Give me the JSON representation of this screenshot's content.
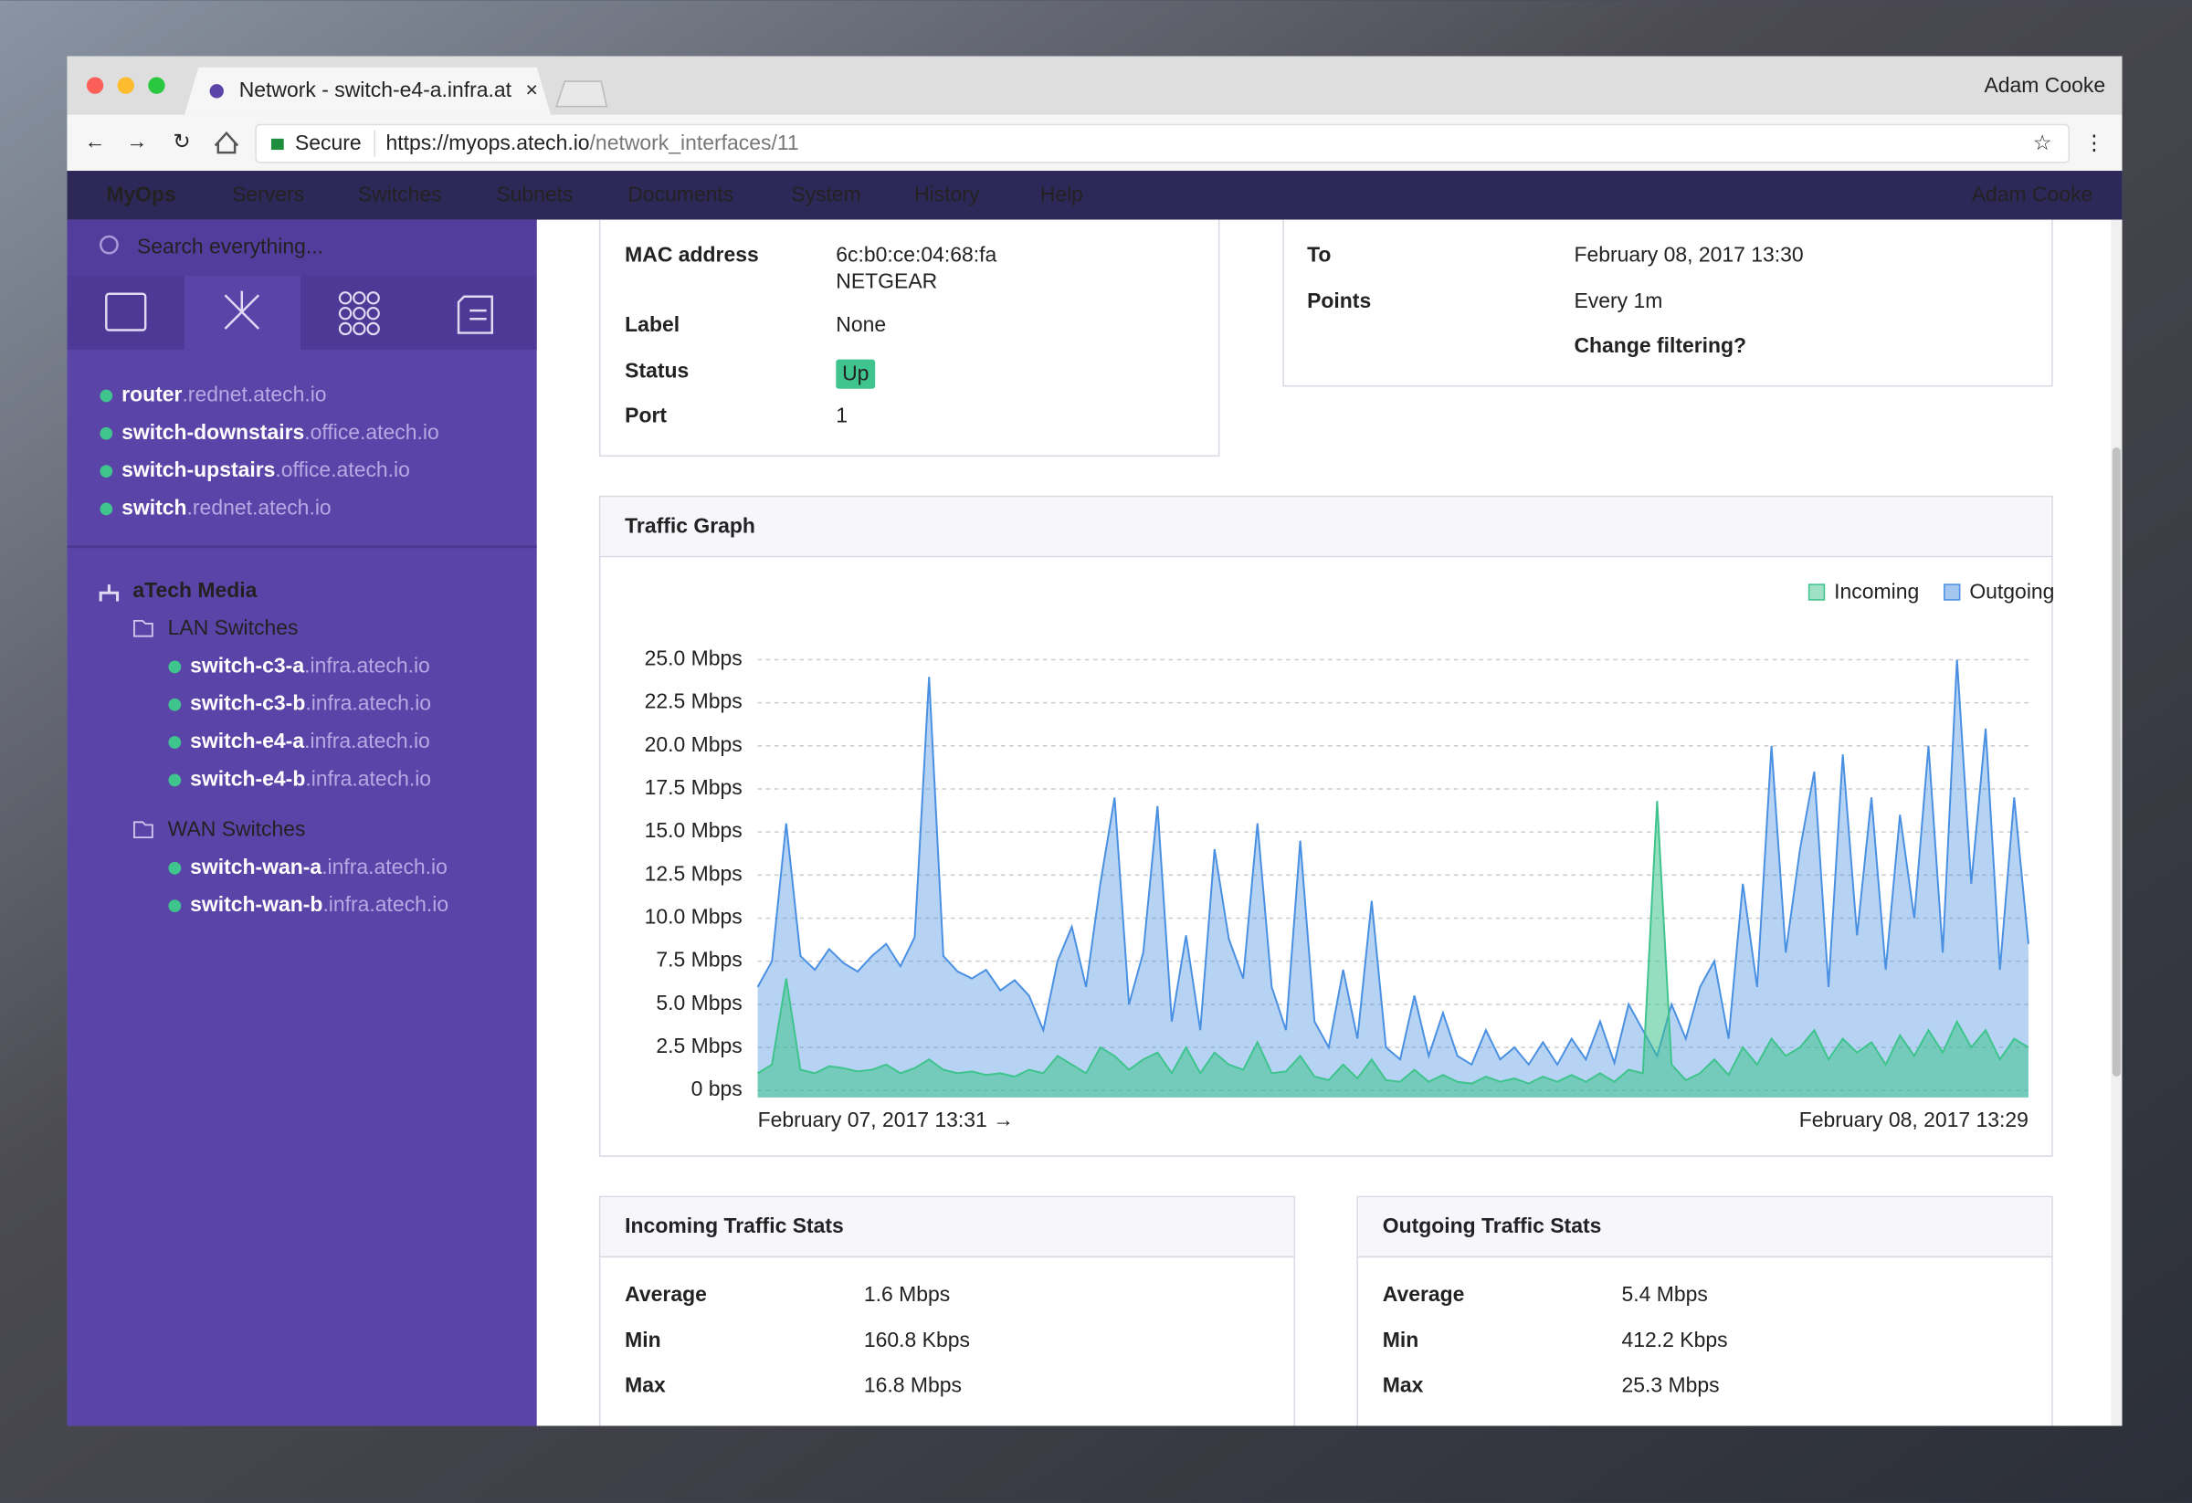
{
  "browser": {
    "tab_title": "Network - switch-e4-a.infra.at",
    "user": "Adam Cooke",
    "secure": "Secure",
    "url_host": "https://myops.atech.io",
    "url_path": "/network_interfaces/11"
  },
  "nav": {
    "brand": "MyOps",
    "items": [
      "Servers",
      "Switches",
      "Subnets",
      "Documents",
      "System",
      "History",
      "Help"
    ],
    "user": "Adam Cooke"
  },
  "sidebar": {
    "search_placeholder": "Search everything...",
    "devices": [
      {
        "name": "router",
        "domain": ".rednet.atech.io"
      },
      {
        "name": "switch-downstairs",
        "domain": ".office.atech.io"
      },
      {
        "name": "switch-upstairs",
        "domain": ".office.atech.io"
      },
      {
        "name": "switch",
        "domain": ".rednet.atech.io"
      }
    ],
    "group": "aTech Media",
    "folders": [
      {
        "name": "LAN Switches",
        "items": [
          {
            "name": "switch-c3-a",
            "domain": ".infra.atech.io"
          },
          {
            "name": "switch-c3-b",
            "domain": ".infra.atech.io"
          },
          {
            "name": "switch-e4-a",
            "domain": ".infra.atech.io"
          },
          {
            "name": "switch-e4-b",
            "domain": ".infra.atech.io"
          }
        ]
      },
      {
        "name": "WAN Switches",
        "items": [
          {
            "name": "switch-wan-a",
            "domain": ".infra.atech.io"
          },
          {
            "name": "switch-wan-b",
            "domain": ".infra.atech.io"
          }
        ]
      }
    ]
  },
  "details": {
    "rows": [
      {
        "label": "MAC address",
        "value": "6c:b0:ce:04:68:fa",
        "note": "NETGEAR"
      },
      {
        "label": "Label",
        "value": "None"
      },
      {
        "label": "Status",
        "value": "Up"
      },
      {
        "label": "Port",
        "value": "1"
      }
    ]
  },
  "filter": {
    "rows": [
      {
        "label": "To",
        "value": "February 08, 2017 13:30"
      },
      {
        "label": "Points",
        "value": "Every 1m"
      }
    ],
    "link": "Change filtering?"
  },
  "chart_data": {
    "type": "area",
    "title": "Traffic Graph",
    "x_labels": [
      "February 07, 2017 13:31 →",
      "February 08, 2017 13:29"
    ],
    "ylim": [
      0,
      27.5
    ],
    "yticks": [
      {
        "value": 0,
        "label": "0 bps"
      },
      {
        "value": 2.5,
        "label": "2.5 Mbps"
      },
      {
        "value": 5,
        "label": "5.0 Mbps"
      },
      {
        "value": 7.5,
        "label": "7.5 Mbps"
      },
      {
        "value": 10,
        "label": "10.0 Mbps"
      },
      {
        "value": 12.5,
        "label": "12.5 Mbps"
      },
      {
        "value": 15,
        "label": "15.0 Mbps"
      },
      {
        "value": 17.5,
        "label": "17.5 Mbps"
      },
      {
        "value": 20,
        "label": "20.0 Mbps"
      },
      {
        "value": 22.5,
        "label": "22.5 Mbps"
      },
      {
        "value": 25,
        "label": "25.0 Mbps"
      }
    ],
    "grid": true,
    "legend": "top-right",
    "series": [
      {
        "name": "Incoming",
        "color": "#3ec48c",
        "values": [
          1.0,
          1.5,
          6.5,
          1.2,
          1.0,
          1.4,
          1.3,
          1.1,
          1.2,
          1.5,
          1.0,
          1.3,
          1.8,
          1.2,
          1.0,
          1.1,
          0.9,
          1.0,
          0.8,
          1.2,
          1.0,
          2.0,
          1.5,
          1.0,
          2.5,
          2.0,
          1.2,
          1.8,
          2.2,
          1.0,
          2.5,
          1.0,
          2.2,
          1.5,
          1.2,
          2.8,
          1.0,
          1.1,
          2.0,
          0.8,
          0.6,
          1.5,
          0.7,
          1.8,
          0.6,
          0.5,
          1.2,
          0.5,
          0.9,
          0.5,
          0.4,
          0.8,
          0.5,
          0.7,
          0.4,
          0.8,
          0.5,
          0.9,
          0.5,
          1.0,
          0.5,
          1.2,
          1.0,
          16.8,
          1.5,
          0.6,
          1.0,
          1.8,
          0.9,
          2.5,
          1.5,
          3.0,
          2.0,
          2.5,
          3.5,
          1.8,
          3.0,
          2.2,
          2.8,
          1.5,
          3.2,
          2.0,
          3.5,
          2.2,
          4.0,
          2.5,
          3.5,
          1.8,
          3.0,
          2.5
        ]
      },
      {
        "name": "Outgoing",
        "color": "#4a90e2",
        "values": [
          6.0,
          7.5,
          15.5,
          7.8,
          7.0,
          8.2,
          7.4,
          6.9,
          7.8,
          8.5,
          7.2,
          8.9,
          24.0,
          7.8,
          6.9,
          6.5,
          7.0,
          5.8,
          6.4,
          5.5,
          3.5,
          7.5,
          9.5,
          6.0,
          12.0,
          17.0,
          5.0,
          8.0,
          16.5,
          4.0,
          9.0,
          3.5,
          14.0,
          8.8,
          6.5,
          15.5,
          6.0,
          3.5,
          14.5,
          4.0,
          2.5,
          7.0,
          3.0,
          11.0,
          2.5,
          1.8,
          5.5,
          2.0,
          4.5,
          2.0,
          1.5,
          3.5,
          1.8,
          2.5,
          1.5,
          2.8,
          1.5,
          3.0,
          1.8,
          4.0,
          1.6,
          5.0,
          3.5,
          2.0,
          5.0,
          3.0,
          6.0,
          7.5,
          3.0,
          12.0,
          6.0,
          20.0,
          8.0,
          14.0,
          18.5,
          6.0,
          19.5,
          9.0,
          17.0,
          7.0,
          16.0,
          10.0,
          20.0,
          8.0,
          25.0,
          12.0,
          21.0,
          7.0,
          17.0,
          8.5
        ]
      }
    ]
  },
  "incoming_stats": {
    "title": "Incoming Traffic Stats",
    "rows": [
      [
        "Average",
        "1.6 Mbps"
      ],
      [
        "Min",
        "160.8 Kbps"
      ],
      [
        "Max",
        "16.8 Mbps"
      ]
    ]
  },
  "outgoing_stats": {
    "title": "Outgoing Traffic Stats",
    "rows": [
      [
        "Average",
        "5.4 Mbps"
      ],
      [
        "Min",
        "412.2 Kbps"
      ],
      [
        "Max",
        "25.3 Mbps"
      ]
    ]
  }
}
